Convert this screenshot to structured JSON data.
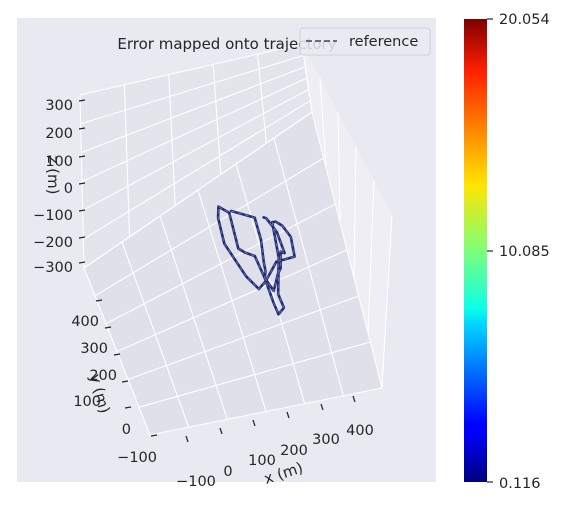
{
  "chart_data": {
    "type": "line",
    "title": "Error mapped onto trajectory",
    "xlabel": "x (m)",
    "ylabel": "y (m)",
    "zlabel": "z (m)",
    "x_ticks": [
      "−100",
      "0",
      "100",
      "200",
      "300",
      "400"
    ],
    "y_ticks": [
      "−100",
      "0",
      "100",
      "200",
      "300",
      "400"
    ],
    "z_ticks": [
      "300",
      "200",
      "100",
      "0",
      "−100",
      "−200",
      "−300"
    ],
    "legend": {
      "entries": [
        {
          "label": "reference",
          "style": "dashed"
        }
      ],
      "location": "top-right"
    },
    "colorbar": {
      "colormap": "jet",
      "min_label": "0.116",
      "mid_label": "10.085",
      "max_label": "20.054",
      "min": 0.116,
      "mid": 10.085,
      "max": 20.054
    },
    "trajectory_color": "#1c2a7e",
    "series": [
      {
        "style": "solid",
        "x": [
          160,
          220,
          220,
          210,
          208,
          200,
          205,
          210,
          230,
          225,
          240,
          255,
          265,
          275,
          290,
          305,
          300,
          245,
          200,
          175,
          150,
          115,
          118,
          128,
          153,
          150,
          165,
          190,
          200,
          215,
          240,
          252,
          265,
          275,
          270,
          252,
          245
        ],
        "y": [
          255,
          260,
          200,
          135,
          110,
          90,
          25,
          -5,
          20,
          55,
          110,
          165,
          265,
          270,
          265,
          240,
          185,
          150,
          80,
          50,
          75,
          150,
          220,
          255,
          248,
          150,
          145,
          145,
          90,
          60,
          115,
          135,
          185,
          185,
          240,
          270,
          270
        ],
        "z": [
          0,
          0,
          0,
          0,
          0,
          0,
          0,
          0,
          0,
          0,
          0,
          0,
          0,
          0,
          0,
          0,
          0,
          0,
          0,
          0,
          0,
          0,
          0,
          0,
          0,
          0,
          0,
          0,
          0,
          0,
          0,
          0,
          0,
          0,
          0,
          0,
          0
        ]
      }
    ]
  }
}
